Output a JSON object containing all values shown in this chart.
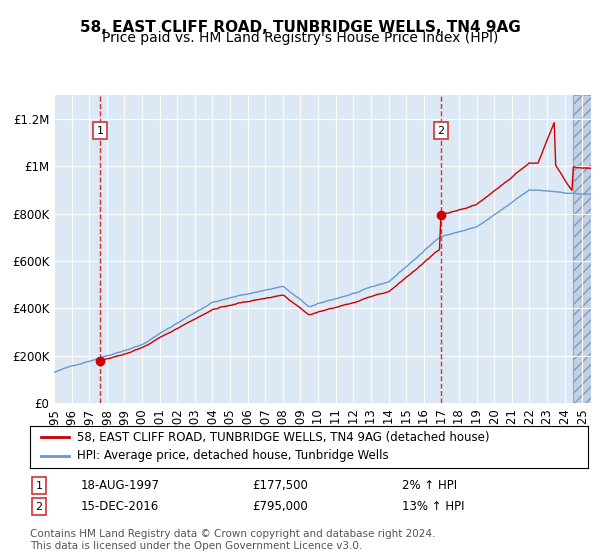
{
  "title": "58, EAST CLIFF ROAD, TUNBRIDGE WELLS, TN4 9AG",
  "subtitle": "Price paid vs. HM Land Registry's House Price Index (HPI)",
  "legend_line1": "58, EAST CLIFF ROAD, TUNBRIDGE WELLS, TN4 9AG (detached house)",
  "legend_line2": "HPI: Average price, detached house, Tunbridge Wells",
  "sale1_date": "18-AUG-1997",
  "sale1_price": 177500,
  "sale1_pct": "2%",
  "sale2_date": "15-DEC-2016",
  "sale2_price": 795000,
  "sale2_pct": "13%",
  "footnote": "Contains HM Land Registry data © Crown copyright and database right 2024.\nThis data is licensed under the Open Government Licence v3.0.",
  "background_color": "#dce9f5",
  "hatch_color": "#c0d0e8",
  "red_line_color": "#cc0000",
  "blue_line_color": "#6699cc",
  "vline_color": "#cc0000",
  "marker_color": "#cc0000",
  "xmin_year": 1995.0,
  "xmax_year": 2025.5,
  "ymin": 0,
  "ymax": 1300000,
  "sale1_year": 1997.625,
  "sale2_year": 2016.958,
  "title_fontsize": 11,
  "subtitle_fontsize": 10,
  "tick_fontsize": 8.5,
  "legend_fontsize": 8.5,
  "footnote_fontsize": 7.5,
  "yticks": [
    0,
    200000,
    400000,
    600000,
    800000,
    1000000,
    1200000
  ],
  "ytick_labels": [
    "£0",
    "£200K",
    "£400K",
    "£600K",
    "£800K",
    "£1M",
    "£1.2M"
  ],
  "xticks": [
    1995,
    1996,
    1997,
    1998,
    1999,
    2000,
    2001,
    2002,
    2003,
    2004,
    2005,
    2006,
    2007,
    2008,
    2009,
    2010,
    2011,
    2012,
    2013,
    2014,
    2015,
    2016,
    2017,
    2018,
    2019,
    2020,
    2021,
    2022,
    2023,
    2024,
    2025
  ]
}
